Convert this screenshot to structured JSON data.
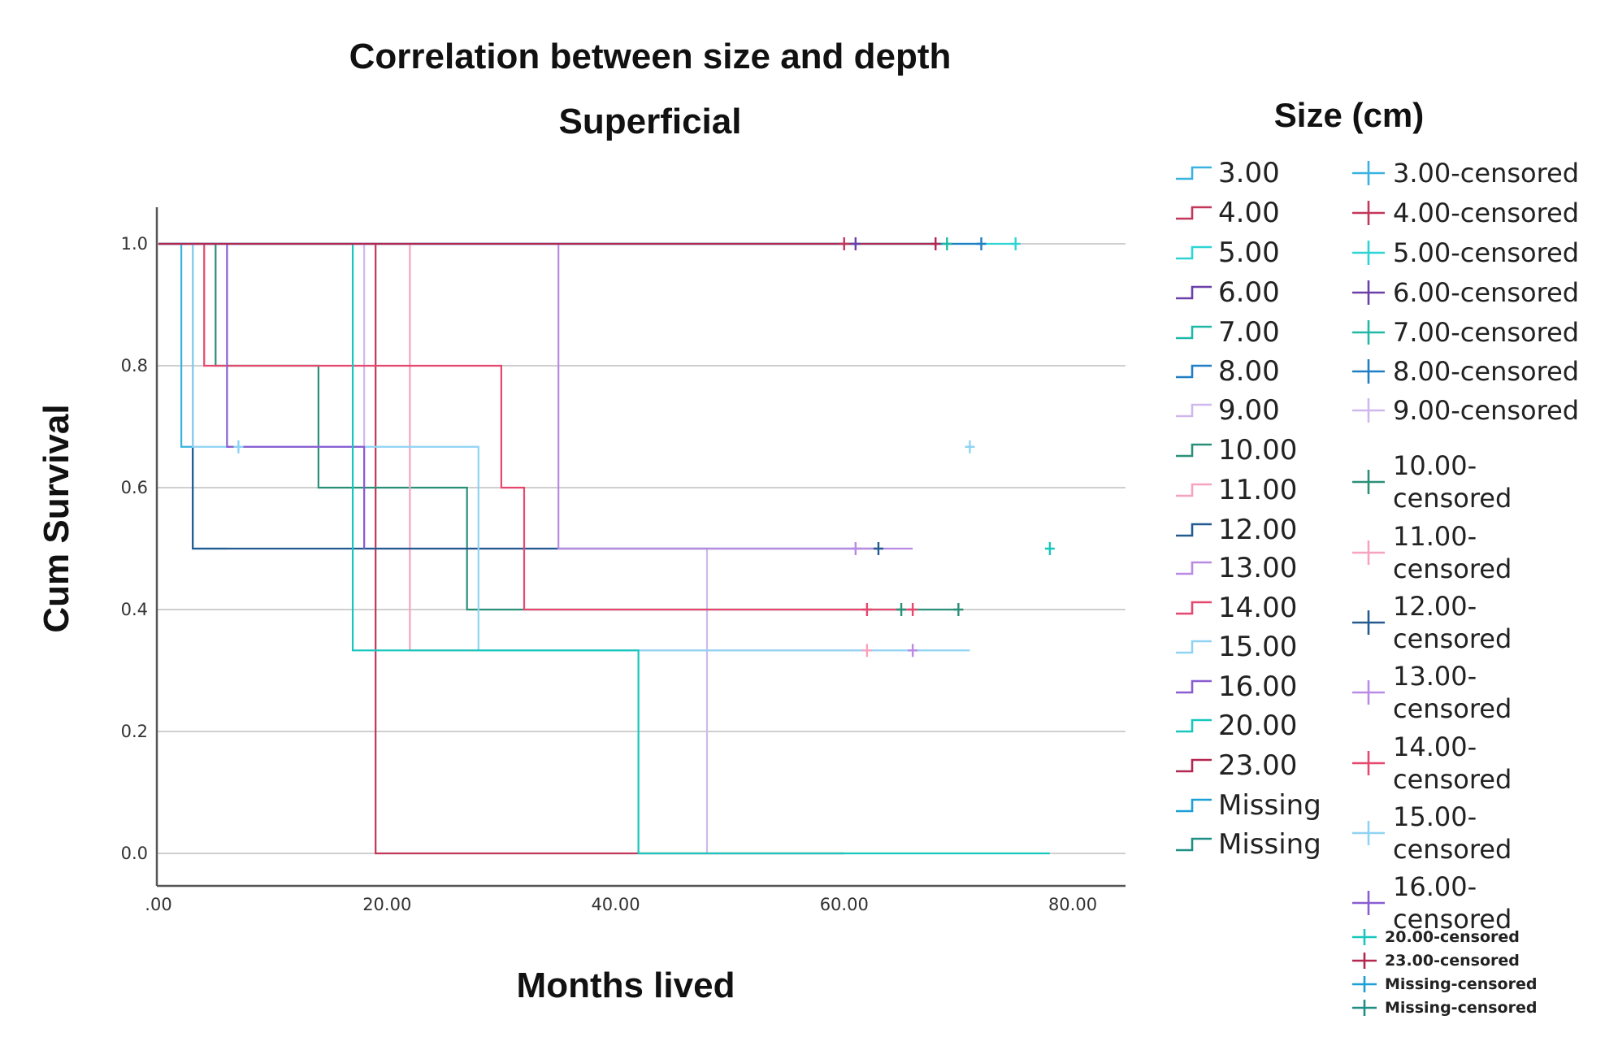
{
  "chart_data": {
    "type": "line",
    "subtype": "kaplan-meier",
    "title": "Correlation between size and depth",
    "subtitle": "Superficial",
    "xlabel": "Months lived",
    "ylabel": "Cum Survival",
    "xlim": [
      -4,
      84
    ],
    "ylim": [
      -0.05,
      1.06
    ],
    "xticks": [
      0,
      20,
      40,
      60,
      80
    ],
    "xtick_labels": [
      ".00",
      "20.00",
      "40.00",
      "60.00",
      "80.00"
    ],
    "yticks": [
      0,
      0.2,
      0.4,
      0.6,
      0.8,
      1.0
    ],
    "ytick_labels": [
      "0.0",
      "0.2",
      "0.4",
      "0.6",
      "0.8",
      "1.0"
    ],
    "grid": "horizontal",
    "legend_title": "Size (cm)",
    "legend_position": "right",
    "series": [
      {
        "name": "3.00",
        "color": "#38b2e0",
        "steps": [
          [
            0,
            1.0
          ],
          [
            2,
            0.667
          ],
          [
            3,
            0.5
          ],
          [
            6,
            0.5
          ]
        ],
        "censored": []
      },
      {
        "name": "4.00",
        "color": "#c2365a",
        "steps": [
          [
            0,
            1.0
          ],
          [
            19,
            0.0
          ]
        ],
        "censored": [
          [
            60,
            1.0
          ]
        ]
      },
      {
        "name": "5.00",
        "color": "#2ed4d4",
        "steps": [
          [
            0,
            1.0
          ]
        ],
        "censored": [
          [
            75,
            1.0
          ]
        ]
      },
      {
        "name": "6.00",
        "color": "#6a3fa8",
        "steps": [
          [
            0,
            1.0
          ]
        ],
        "censored": [
          [
            61,
            1.0
          ]
        ]
      },
      {
        "name": "7.00",
        "color": "#1fb8a6",
        "steps": [
          [
            0,
            1.0
          ]
        ],
        "censored": [
          [
            69,
            1.0
          ]
        ]
      },
      {
        "name": "8.00",
        "color": "#1f7ec4",
        "steps": [
          [
            0,
            1.0
          ]
        ],
        "censored": [
          [
            72,
            1.0
          ]
        ]
      },
      {
        "name": "9.00",
        "color": "#cfb8ee",
        "steps": [
          [
            0,
            1.0
          ],
          [
            18,
            0.5
          ],
          [
            35,
            0.5
          ],
          [
            48,
            0.0
          ]
        ],
        "censored": []
      },
      {
        "name": "10.00",
        "color": "#2b8f78",
        "steps": [
          [
            0,
            1.0
          ],
          [
            5,
            0.8
          ],
          [
            14,
            0.6
          ],
          [
            27,
            0.4
          ]
        ],
        "censored": [
          [
            65,
            0.4
          ],
          [
            70,
            0.4
          ]
        ]
      },
      {
        "name": "11.00",
        "color": "#f7a3c0",
        "steps": [
          [
            0,
            1.0
          ],
          [
            22,
            0.333
          ]
        ],
        "censored": [
          [
            62,
            0.333
          ]
        ]
      },
      {
        "name": "12.00",
        "color": "#245a8f",
        "steps": [
          [
            0,
            1.0
          ],
          [
            3,
            0.5
          ]
        ],
        "censored": [
          [
            63,
            0.5
          ]
        ]
      },
      {
        "name": "13.00",
        "color": "#b98ae3",
        "steps": [
          [
            0,
            1.0
          ],
          [
            35,
            0.5
          ]
        ],
        "censored": [
          [
            61,
            0.5
          ],
          [
            66,
            0.333
          ]
        ]
      },
      {
        "name": "14.00",
        "color": "#e5476e",
        "steps": [
          [
            0,
            1.0
          ],
          [
            4,
            0.8
          ],
          [
            30,
            0.6
          ],
          [
            32,
            0.4
          ]
        ],
        "censored": [
          [
            62,
            0.4
          ],
          [
            66,
            0.4
          ]
        ]
      },
      {
        "name": "15.00",
        "color": "#8fd3f4",
        "steps": [
          [
            0,
            1.0
          ],
          [
            3,
            0.667
          ],
          [
            28,
            0.333
          ]
        ],
        "censored": [
          [
            7,
            0.667
          ],
          [
            71,
            0.667
          ]
        ]
      },
      {
        "name": "16.00",
        "color": "#8a5cd1",
        "steps": [
          [
            0,
            1.0
          ],
          [
            6,
            0.667
          ],
          [
            18,
            0.5
          ]
        ],
        "censored": []
      },
      {
        "name": "20.00",
        "color": "#17c7bd",
        "steps": [
          [
            0,
            1.0
          ],
          [
            17,
            0.333
          ],
          [
            42,
            0.0
          ]
        ],
        "censored": [
          [
            78,
            0.5
          ]
        ]
      },
      {
        "name": "23.00",
        "color": "#b2264f",
        "steps": [
          [
            0,
            1.0
          ]
        ],
        "censored": [
          [
            68,
            1.0
          ]
        ]
      },
      {
        "name": "Missing",
        "color": "#1b9fd6",
        "steps": [
          [
            0,
            1.0
          ]
        ],
        "censored": []
      },
      {
        "name": "Missing",
        "color": "#1f8f86",
        "steps": [
          [
            0,
            1.0
          ]
        ],
        "censored": []
      }
    ]
  },
  "legend": {
    "title": "Size (cm)",
    "col1": [
      {
        "label": "3.00",
        "color": "#38b2e0"
      },
      {
        "label": "4.00",
        "color": "#c2365a"
      },
      {
        "label": "5.00",
        "color": "#2ed4d4"
      },
      {
        "label": "6.00",
        "color": "#6a3fa8"
      },
      {
        "label": "7.00",
        "color": "#1fb8a6"
      },
      {
        "label": "8.00",
        "color": "#1f7ec4"
      },
      {
        "label": "9.00",
        "color": "#cfb8ee"
      },
      {
        "label": "10.00",
        "color": "#2b8f78"
      },
      {
        "label": "11.00",
        "color": "#f7a3c0"
      },
      {
        "label": "12.00",
        "color": "#245a8f"
      },
      {
        "label": "13.00",
        "color": "#b98ae3"
      },
      {
        "label": "14.00",
        "color": "#e5476e"
      },
      {
        "label": "15.00",
        "color": "#8fd3f4"
      },
      {
        "label": "16.00",
        "color": "#8a5cd1"
      },
      {
        "label": "20.00",
        "color": "#17c7bd"
      },
      {
        "label": "23.00",
        "color": "#b2264f"
      },
      {
        "label": "Missing",
        "color": "#1b9fd6"
      },
      {
        "label": "Missing",
        "color": "#1f8f86"
      }
    ],
    "col2": [
      {
        "label": "3.00-censored",
        "color": "#38b2e0"
      },
      {
        "label": "4.00-censored",
        "color": "#c2365a"
      },
      {
        "label": "5.00-censored",
        "color": "#2ed4d4"
      },
      {
        "label": "6.00-censored",
        "color": "#6a3fa8"
      },
      {
        "label": "7.00-censored",
        "color": "#1fb8a6"
      },
      {
        "label": "8.00-censored",
        "color": "#1f7ec4"
      },
      {
        "label": "9.00-censored",
        "color": "#cfb8ee"
      },
      {
        "label": "10.00-\ncensored",
        "color": "#2b8f78"
      },
      {
        "label": "11.00-\ncensored",
        "color": "#f7a3c0"
      },
      {
        "label": "12.00-\ncensored",
        "color": "#245a8f"
      },
      {
        "label": "13.00-\ncensored",
        "color": "#b98ae3"
      },
      {
        "label": "14.00-\ncensored",
        "color": "#e5476e"
      },
      {
        "label": "15.00-\ncensored",
        "color": "#8fd3f4"
      },
      {
        "label": "16.00-\ncensored",
        "color": "#8a5cd1"
      },
      {
        "label": "20.00-censored",
        "color": "#17c7bd"
      },
      {
        "label": "23.00-censored",
        "color": "#b2264f"
      },
      {
        "label": "Missing-censored",
        "color": "#1b9fd6"
      },
      {
        "label": "Missing-censored",
        "color": "#1f8f86"
      }
    ]
  }
}
